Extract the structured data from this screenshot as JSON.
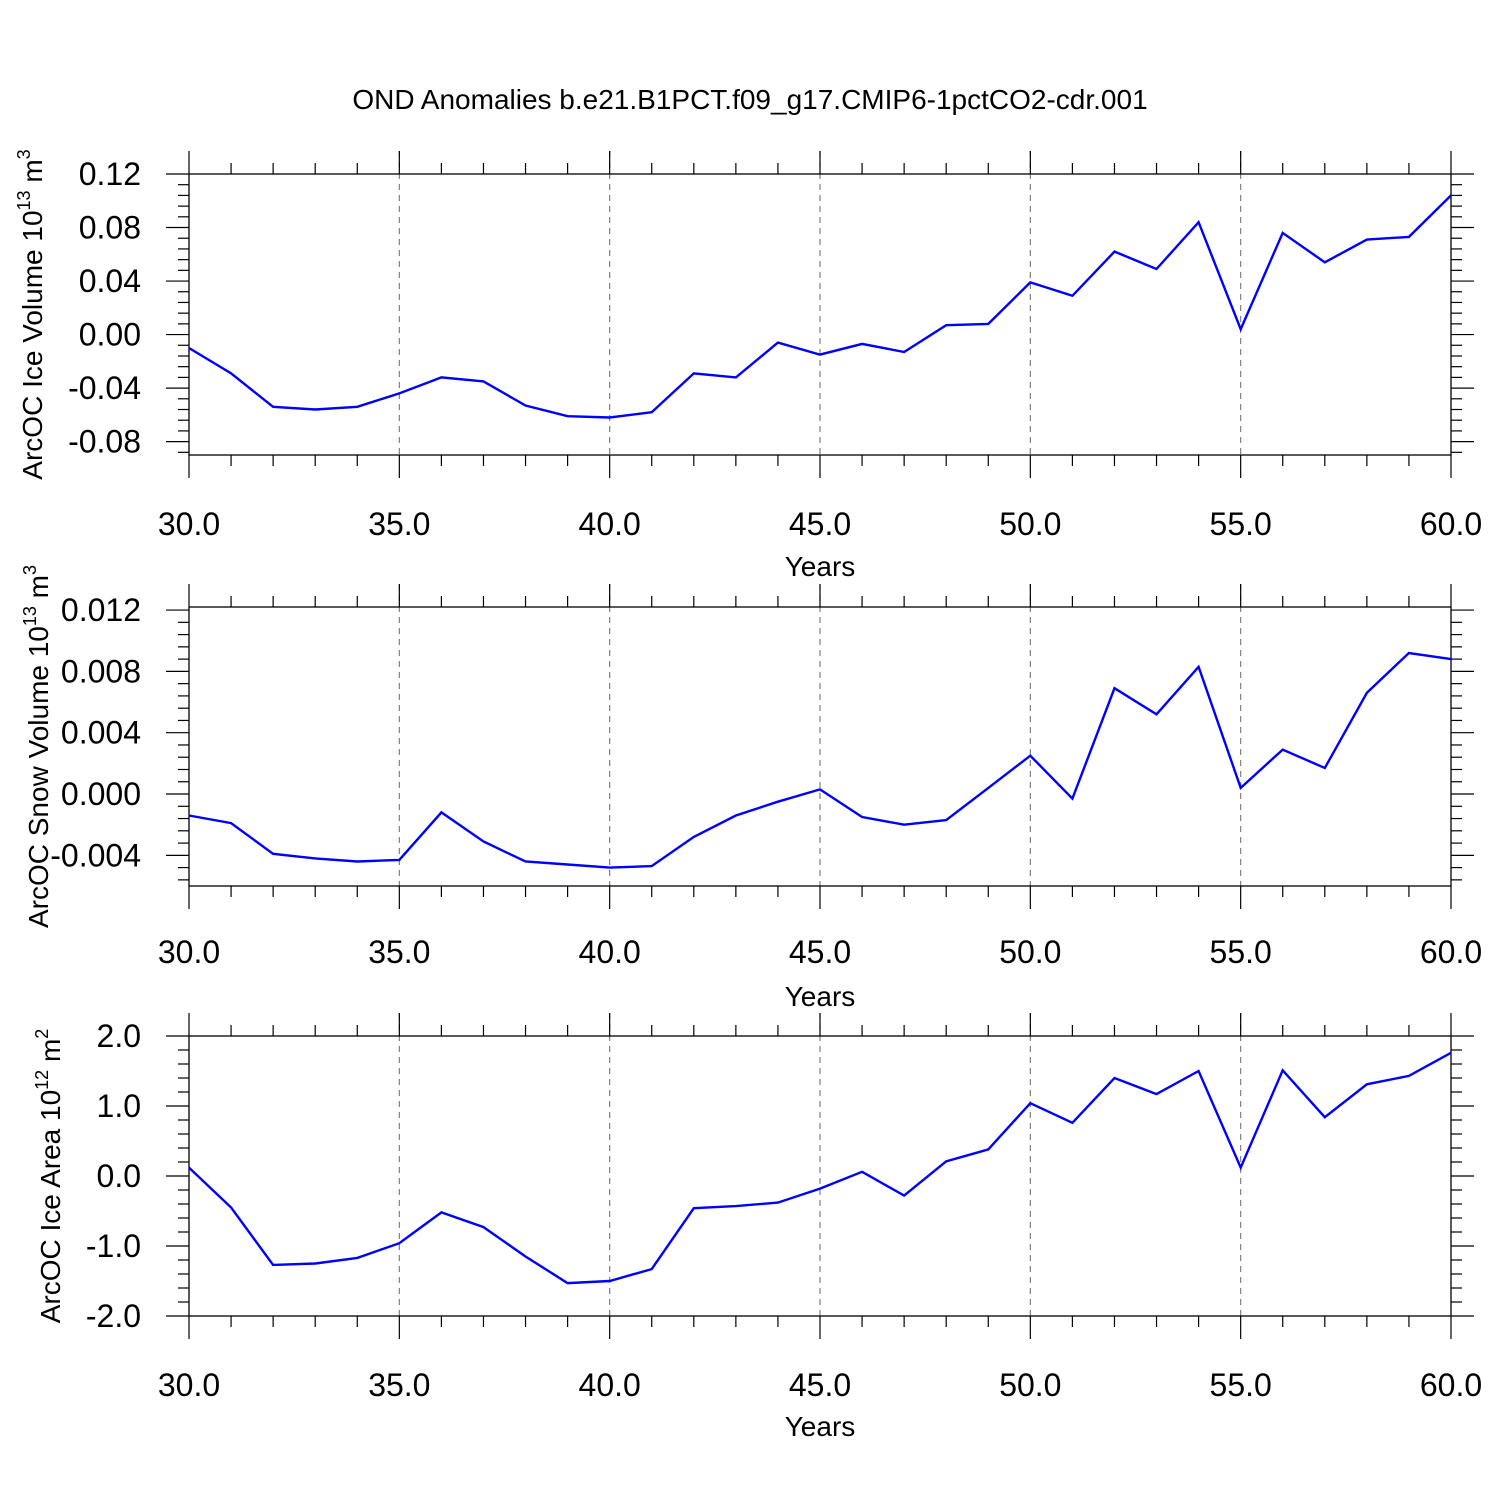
{
  "title": "OND Anomalies b.e21.B1PCT.f09_g17.CMIP6-1pctCO2-cdr.001",
  "colors": {
    "line": "#0000ff",
    "axis": "#000000",
    "grid": "#808080",
    "background": "#ffffff"
  },
  "chart_data": [
    {
      "type": "line",
      "ylabel": {
        "text": "ArcOC Ice Volume 10",
        "sup": "13",
        "unit": " m",
        "unit_sup": "3"
      },
      "xlabel": "Years",
      "xlim": [
        30,
        60
      ],
      "ylim": [
        -0.09,
        0.12
      ],
      "xticks": [
        30,
        35,
        40,
        45,
        50,
        55,
        60
      ],
      "xtick_labels": [
        "30.0",
        "35.0",
        "40.0",
        "45.0",
        "50.0",
        "55.0",
        "60.0"
      ],
      "yticks": [
        0.12,
        0.08,
        0.04,
        0.0,
        -0.04,
        -0.08
      ],
      "ytick_labels": [
        "0.12",
        "0.08",
        "0.04",
        "0.00",
        "-0.04",
        "-0.08"
      ],
      "grid": "vertical dashed at major x ticks",
      "x": [
        30,
        31,
        32,
        33,
        34,
        35,
        36,
        37,
        38,
        39,
        40,
        41,
        42,
        43,
        44,
        45,
        46,
        47,
        48,
        49,
        50,
        51,
        52,
        53,
        54,
        55,
        56,
        57,
        58,
        59,
        60
      ],
      "values": [
        -0.01,
        -0.029,
        -0.054,
        -0.056,
        -0.054,
        -0.044,
        -0.032,
        -0.035,
        -0.053,
        -0.061,
        -0.062,
        -0.058,
        -0.029,
        -0.032,
        -0.006,
        -0.015,
        -0.007,
        -0.013,
        0.007,
        0.008,
        0.039,
        0.029,
        0.062,
        0.049,
        0.084,
        0.004,
        0.076,
        0.054,
        0.071,
        0.073,
        0.104
      ]
    },
    {
      "type": "line",
      "ylabel": {
        "text": "ArcOC Snow Volume 10",
        "sup": "13",
        "unit": " m",
        "unit_sup": "3"
      },
      "xlabel": "Years",
      "xlim": [
        30,
        60
      ],
      "ylim": [
        -0.006,
        0.0122
      ],
      "xticks": [
        30,
        35,
        40,
        45,
        50,
        55,
        60
      ],
      "xtick_labels": [
        "30.0",
        "35.0",
        "40.0",
        "45.0",
        "50.0",
        "55.0",
        "60.0"
      ],
      "yticks": [
        0.012,
        0.008,
        0.004,
        0.0,
        -0.004
      ],
      "ytick_labels": [
        "0.012",
        "0.008",
        "0.004",
        "0.000",
        "-0.004"
      ],
      "grid": "vertical dashed at major x ticks",
      "x": [
        30,
        31,
        32,
        33,
        34,
        35,
        36,
        37,
        38,
        39,
        40,
        41,
        42,
        43,
        44,
        45,
        46,
        47,
        48,
        49,
        50,
        51,
        52,
        53,
        54,
        55,
        56,
        57,
        58,
        59,
        60
      ],
      "values": [
        -0.0014,
        -0.0019,
        -0.0039,
        -0.0042,
        -0.0044,
        -0.0043,
        -0.0012,
        -0.0031,
        -0.0044,
        -0.0046,
        -0.0048,
        -0.0047,
        -0.0028,
        -0.0014,
        -0.0005,
        0.0003,
        -0.0015,
        -0.002,
        -0.0017,
        0.0004,
        0.0025,
        -0.0003,
        0.0069,
        0.0052,
        0.0083,
        0.0004,
        0.0029,
        0.0017,
        0.0066,
        0.0092,
        0.0088
      ]
    },
    {
      "type": "line",
      "ylabel": {
        "text": "ArcOC Ice Area 10",
        "sup": "12",
        "unit": " m",
        "unit_sup": "2"
      },
      "xlabel": "Years",
      "xlim": [
        30,
        60
      ],
      "ylim": [
        -2.0,
        2.0
      ],
      "xticks": [
        30,
        35,
        40,
        45,
        50,
        55,
        60
      ],
      "xtick_labels": [
        "30.0",
        "35.0",
        "40.0",
        "45.0",
        "50.0",
        "55.0",
        "60.0"
      ],
      "yticks": [
        2.0,
        1.0,
        0.0,
        -1.0,
        -2.0
      ],
      "ytick_labels": [
        "2.0",
        "1.0",
        "0.0",
        "-1.0",
        "-2.0"
      ],
      "grid": "vertical dashed at major x ticks",
      "x": [
        30,
        31,
        32,
        33,
        34,
        35,
        36,
        37,
        38,
        39,
        40,
        41,
        42,
        43,
        44,
        45,
        46,
        47,
        48,
        49,
        50,
        51,
        52,
        53,
        54,
        55,
        56,
        57,
        58,
        59,
        60
      ],
      "values": [
        0.12,
        -0.45,
        -1.27,
        -1.25,
        -1.17,
        -0.96,
        -0.52,
        -0.73,
        -1.15,
        -1.53,
        -1.5,
        -1.33,
        -0.46,
        -0.43,
        -0.38,
        -0.18,
        0.06,
        -0.28,
        0.21,
        0.38,
        1.04,
        0.76,
        1.4,
        1.17,
        1.5,
        0.12,
        1.51,
        0.84,
        1.31,
        1.43,
        1.76
      ]
    }
  ]
}
